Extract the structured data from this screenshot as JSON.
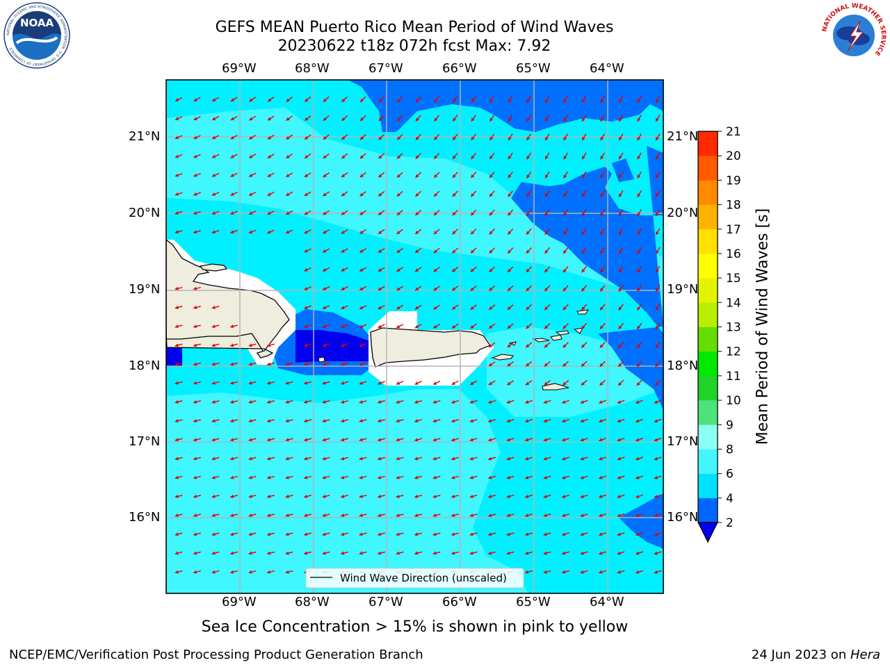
{
  "title": {
    "line1": "GEFS MEAN Puerto Rico Mean Period of Wind Waves",
    "line2": "20230622 t18z 072h fcst   Max: 7.92"
  },
  "map": {
    "lon_ticks": [
      "69°W",
      "68°W",
      "67°W",
      "66°W",
      "65°W",
      "64°W"
    ],
    "lat_ticks": [
      "21°N",
      "20°N",
      "19°N",
      "18°N",
      "17°N",
      "16°N"
    ],
    "legend": "Wind Wave Direction (unscaled)",
    "vector_color": "#e00000",
    "land_color": "#efedde"
  },
  "colorbar": {
    "label": "Mean Period of Wind Waves [s]",
    "ticks": [
      "2",
      "4",
      "6",
      "8",
      "9",
      "10",
      "11",
      "12",
      "13",
      "14",
      "15",
      "16",
      "17",
      "18",
      "19",
      "20",
      "21"
    ],
    "colors": [
      "#0066ff",
      "#00e0ff",
      "#44f5ff",
      "#8cfff4",
      "#4de37a",
      "#22d42a",
      "#00e800",
      "#66dd00",
      "#b8ee00",
      "#e3f400",
      "#ffff00",
      "#ffe000",
      "#ffb300",
      "#ff8a00",
      "#ff5a00",
      "#ff2a00"
    ],
    "under_color": "#0000ee"
  },
  "caption": "Sea Ice Concentration > 15% is shown in pink to yellow",
  "footer": {
    "left": "NCEP/EMC/Verification Post Processing Product Generation Branch",
    "right_date": "24 Jun 2023 on ",
    "right_host": "Hera"
  },
  "logos": {
    "noaa": "NOAA",
    "noaa_ring": "NATIONAL OCEANIC AND ATMOSPHERIC ADMINISTRATION · U.S. DEPARTMENT OF COMMERCE",
    "nws_ring": "NATIONAL WEATHER SERVICE"
  }
}
